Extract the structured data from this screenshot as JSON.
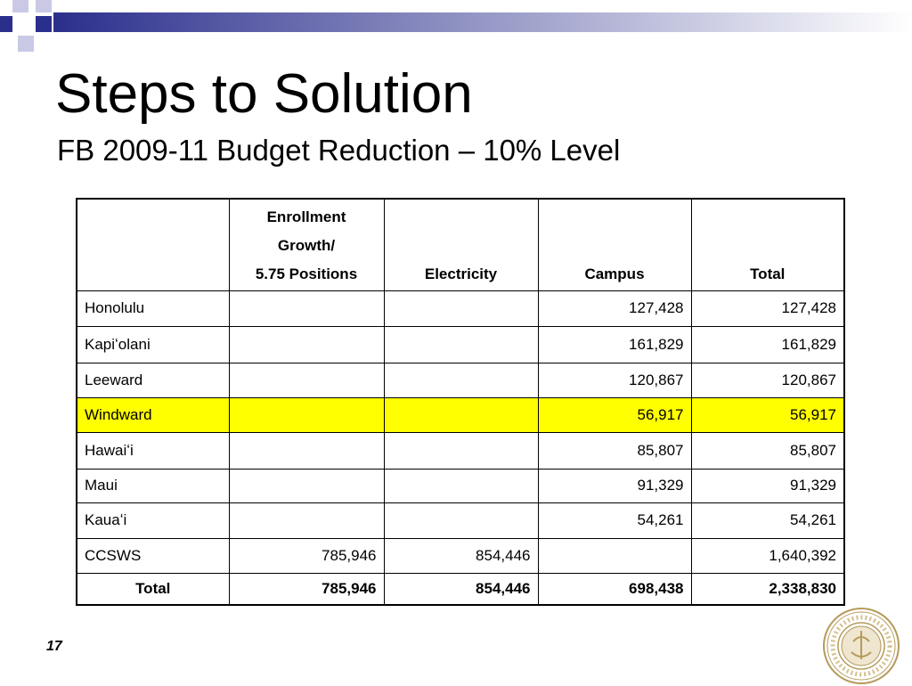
{
  "header": {
    "title": "Steps to Solution",
    "subtitle": "FB 2009-11 Budget Reduction – 10% Level"
  },
  "table": {
    "columns": [
      [
        "Enrollment",
        "Growth/",
        "5.75 Positions"
      ],
      [
        "Electricity"
      ],
      [
        "Campus"
      ],
      [
        "Total"
      ]
    ],
    "rows": [
      {
        "name": "Honolulu",
        "campus": "127,428",
        "total": "127,428"
      },
      {
        "name": "Kapiʻolani",
        "campus": "161,829",
        "total": "161,829"
      },
      {
        "name": "Leeward",
        "campus": "120,867",
        "total": "120,867"
      },
      {
        "name": "Windward",
        "campus": "56,917",
        "total": "56,917",
        "highlight": true
      },
      {
        "name": "Hawaiʻi",
        "campus": "85,807",
        "total": "85,807"
      },
      {
        "name": "Maui",
        "campus": "91,329",
        "total": "91,329"
      },
      {
        "name": "Kauaʻi",
        "campus": "54,261",
        "total": "54,261"
      },
      {
        "name": "CCSWS",
        "enrollment": "785,946",
        "electricity": "854,446",
        "total": "1,640,392"
      },
      {
        "name": "Total",
        "enrollment": "785,946",
        "electricity": "854,446",
        "campus": "698,438",
        "total": "2,338,830",
        "bold": true
      }
    ]
  },
  "footer": {
    "page_number": "17"
  }
}
